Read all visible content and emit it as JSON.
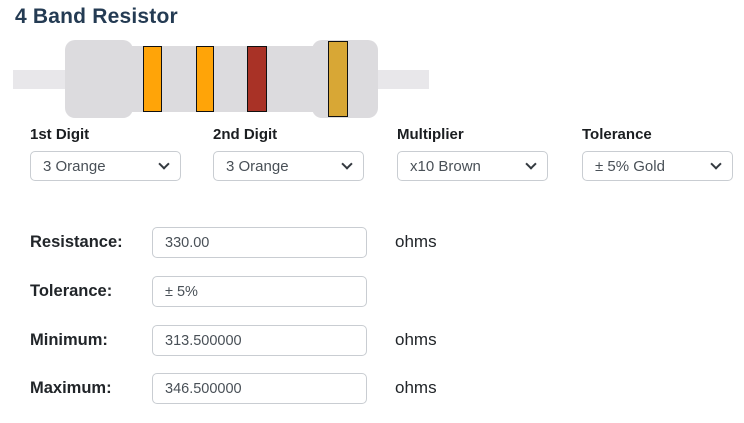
{
  "title": "4 Band Resistor",
  "resistor": {
    "body_color": "#dcdbde",
    "lead_color": "#e8e7ea",
    "bands": [
      {
        "name": "1st digit band",
        "color_name": "Orange",
        "color": "#ffa408"
      },
      {
        "name": "2nd digit band",
        "color_name": "Orange",
        "color": "#ffa408"
      },
      {
        "name": "multiplier band",
        "color_name": "Brown",
        "color": "#a93226"
      },
      {
        "name": "tolerance band",
        "color_name": "Gold",
        "color": "#d8a735"
      }
    ]
  },
  "selectors": [
    {
      "label": "1st Digit",
      "value": "3 Orange"
    },
    {
      "label": "2nd Digit",
      "value": "3 Orange"
    },
    {
      "label": "Multiplier",
      "value": "x10 Brown"
    },
    {
      "label": "Tolerance",
      "value": "± 5% Gold"
    }
  ],
  "results": [
    {
      "label": "Resistance:",
      "value": "330.00",
      "unit": "ohms"
    },
    {
      "label": "Tolerance:",
      "value": "± 5%",
      "unit": ""
    },
    {
      "label": "Minimum:",
      "value": "313.500000",
      "unit": "ohms"
    },
    {
      "label": "Maximum:",
      "value": "346.500000",
      "unit": "ohms"
    }
  ]
}
